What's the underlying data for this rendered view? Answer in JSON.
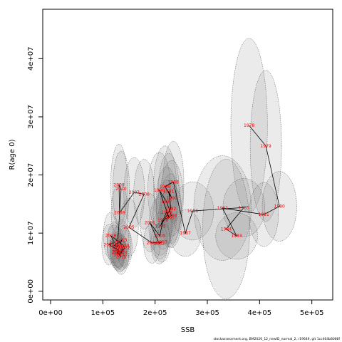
{
  "chart_data": {
    "type": "scatter",
    "xlabel": "SSB",
    "ylabel": "R(age 0)",
    "xlim": [
      -15000,
      540000
    ],
    "ylim": [
      -1500000,
      48500000
    ],
    "x_ticks": [
      {
        "value": 0,
        "label": "0e+00"
      },
      {
        "value": 100000,
        "label": "1e+05"
      },
      {
        "value": 200000,
        "label": "2e+05"
      },
      {
        "value": 300000,
        "label": "3e+05"
      },
      {
        "value": 400000,
        "label": "4e+05"
      },
      {
        "value": 500000,
        "label": "5e+05"
      }
    ],
    "y_ticks": [
      {
        "value": 0,
        "label": "0e+00"
      },
      {
        "value": 10000000,
        "label": "1e+07"
      },
      {
        "value": 20000000,
        "label": "2e+07"
      },
      {
        "value": 30000000,
        "label": "3e+07"
      },
      {
        "value": 40000000,
        "label": "4e+07"
      }
    ],
    "grid": false,
    "points": [
      {
        "label": "1978",
        "x": 380000,
        "y": 28500000,
        "ex": 35000,
        "ey": 15000000
      },
      {
        "label": "1979",
        "x": 412000,
        "y": 25000000,
        "ex": 30000,
        "ey": 13000000
      },
      {
        "label": "1980",
        "x": 438000,
        "y": 14600000,
        "ex": 33000,
        "ey": 6000000
      },
      {
        "label": "1981",
        "x": 408000,
        "y": 13200000,
        "ex": 28000,
        "ey": 5500000
      },
      {
        "label": "1982",
        "x": 329000,
        "y": 14300000,
        "ex": 55000,
        "ey": 9000000
      },
      {
        "label": "1983",
        "x": 356000,
        "y": 9500000,
        "ex": 40000,
        "ey": 4000000
      },
      {
        "label": "1984",
        "x": 336000,
        "y": 10700000,
        "ex": 45000,
        "ey": 12000000
      },
      {
        "label": "1985",
        "x": 370000,
        "y": 14400000,
        "ex": 40000,
        "ey": 5000000
      },
      {
        "label": "1986",
        "x": 272000,
        "y": 13800000,
        "ex": 40000,
        "ey": 5000000
      },
      {
        "label": "1987",
        "x": 258000,
        "y": 10000000,
        "ex": 30000,
        "ey": 4000000
      },
      {
        "label": "1988",
        "x": 235000,
        "y": 18800000,
        "ex": 20000,
        "ey": 7000000
      },
      {
        "label": "1989",
        "x": 219000,
        "y": 18000000,
        "ex": 22000,
        "ey": 7000000
      },
      {
        "label": "1990",
        "x": 232000,
        "y": 16000000,
        "ex": 22000,
        "ey": 6500000
      },
      {
        "label": "1991",
        "x": 226000,
        "y": 17200000,
        "ex": 20000,
        "ey": 6500000
      },
      {
        "label": "1992",
        "x": 230000,
        "y": 14200000,
        "ex": 20000,
        "ey": 6000000
      },
      {
        "label": "1993",
        "x": 210000,
        "y": 11200000,
        "ex": 22000,
        "ey": 5000000
      },
      {
        "label": "1994",
        "x": 222000,
        "y": 13600000,
        "ex": 20000,
        "ey": 5500000
      },
      {
        "label": "1995",
        "x": 227000,
        "y": 12600000,
        "ex": 20000,
        "ey": 5000000
      },
      {
        "label": "1996",
        "x": 208000,
        "y": 17400000,
        "ex": 22000,
        "ey": 6500000
      },
      {
        "label": "1997",
        "x": 222000,
        "y": 15400000,
        "ex": 20000,
        "ey": 6000000
      },
      {
        "label": "1998",
        "x": 231000,
        "y": 13000000,
        "ex": 20000,
        "ey": 5500000
      },
      {
        "label": "1999",
        "x": 215000,
        "y": 12200000,
        "ex": 18000,
        "ey": 5000000
      },
      {
        "label": "2000",
        "x": 209000,
        "y": 9500000,
        "ex": 18000,
        "ey": 4000000
      },
      {
        "label": "2001",
        "x": 190000,
        "y": 11800000,
        "ex": 18000,
        "ey": 5000000
      },
      {
        "label": "2002",
        "x": 208000,
        "y": 8200000,
        "ex": 16000,
        "ey": 3500000
      },
      {
        "label": "2003",
        "x": 213000,
        "y": 8500000,
        "ex": 16000,
        "ey": 3500000
      },
      {
        "label": "2004",
        "x": 194000,
        "y": 8300000,
        "ex": 16000,
        "ey": 3500000
      },
      {
        "label": "2005",
        "x": 150000,
        "y": 11000000,
        "ex": 18000,
        "ey": 5000000
      },
      {
        "label": "2006",
        "x": 179000,
        "y": 16700000,
        "ex": 20000,
        "ey": 6000000
      },
      {
        "label": "2007",
        "x": 160000,
        "y": 17000000,
        "ex": 20000,
        "ey": 6000000
      },
      {
        "label": "2008",
        "x": 132000,
        "y": 13500000,
        "ex": 16000,
        "ey": 5000000
      },
      {
        "label": "2009",
        "x": 131000,
        "y": 18300000,
        "ex": 16000,
        "ey": 7000000
      },
      {
        "label": "2010",
        "x": 135000,
        "y": 17600000,
        "ex": 16000,
        "ey": 6500000
      },
      {
        "label": "2011",
        "x": 128000,
        "y": 7600000,
        "ex": 14000,
        "ey": 3500000
      },
      {
        "label": "2012",
        "x": 122000,
        "y": 7900000,
        "ex": 14000,
        "ey": 3500000
      },
      {
        "label": "2013",
        "x": 136000,
        "y": 8800000,
        "ex": 14000,
        "ey": 3500000
      },
      {
        "label": "2014",
        "x": 128000,
        "y": 6600000,
        "ex": 14000,
        "ey": 3000000
      },
      {
        "label": "2015",
        "x": 135000,
        "y": 5900000,
        "ex": 14000,
        "ey": 3000000
      },
      {
        "label": "2016",
        "x": 128000,
        "y": 7200000,
        "ex": 14000,
        "ey": 3000000
      },
      {
        "label": "2017",
        "x": 112000,
        "y": 8000000,
        "ex": 14000,
        "ey": 3500000
      },
      {
        "label": "2018",
        "x": 122000,
        "y": 8400000,
        "ex": 14000,
        "ey": 3500000
      },
      {
        "label": "2019",
        "x": 115000,
        "y": 9600000,
        "ex": 14000,
        "ey": 4000000
      },
      {
        "label": "2020",
        "x": 140000,
        "y": 7800000,
        "ex": 14000,
        "ey": 3500000
      },
      {
        "label": "2021",
        "x": 132000,
        "y": 6300000,
        "ex": 14000,
        "ey": 3000000
      },
      {
        "label": "2022",
        "x": 142000,
        "y": 7500000,
        "ex": 14000,
        "ey": 3500000
      },
      {
        "label": "2023",
        "x": 136000,
        "y": 6600000,
        "ex": 14000,
        "ey": 3000000
      },
      {
        "label": "2024",
        "x": 131000,
        "y": 7000000,
        "ex": 14000,
        "ey": 3000000
      },
      {
        "label": "2025",
        "x": 128000,
        "y": 6800000,
        "ex": 14000,
        "ey": 3000000
      }
    ],
    "series_color": "#000000",
    "label_color": "#ff0000",
    "ellipse_fill": "#808080",
    "ellipse_stroke": "#555555"
  },
  "footer_text": "stockassessment.org, BM2026_12_newID_normal_2, r19649, git 1cc464b8086f"
}
